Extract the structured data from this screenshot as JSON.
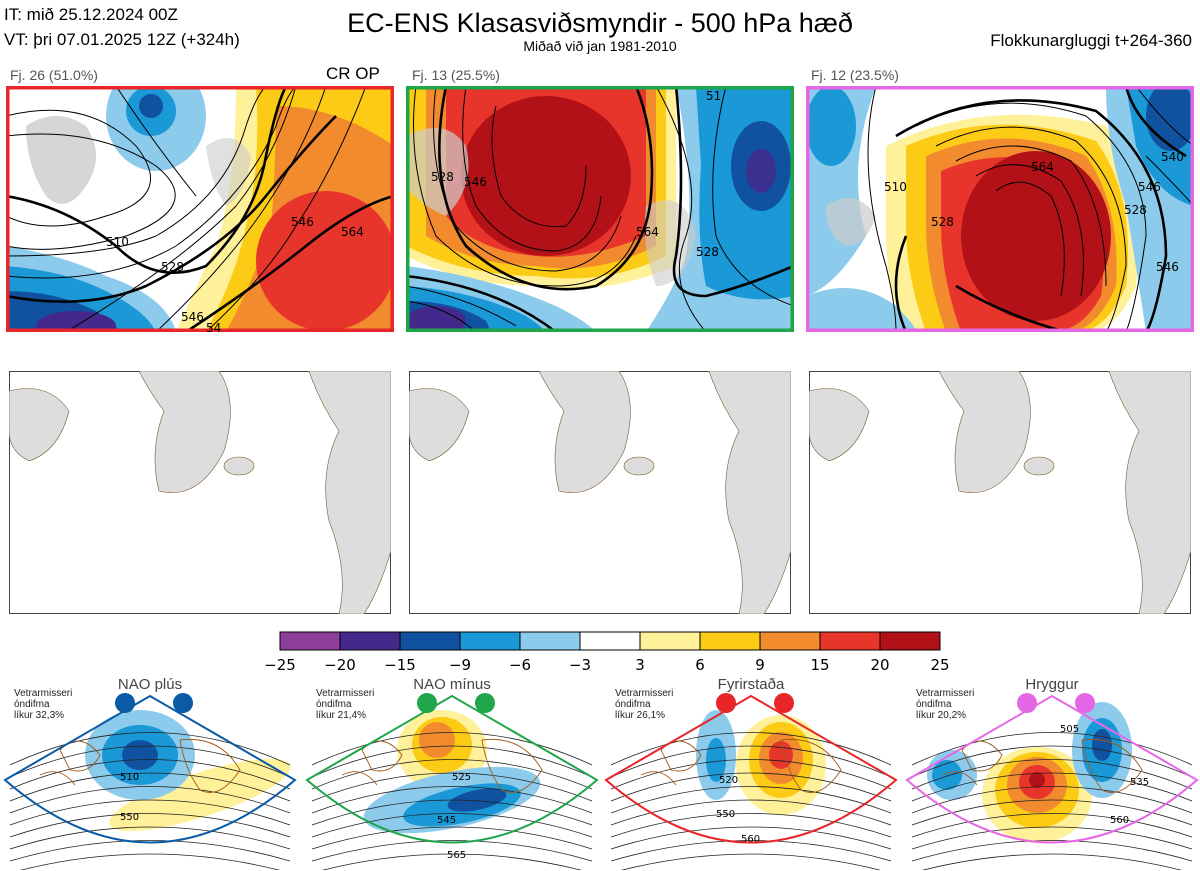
{
  "header": {
    "it_line": "IT: mið 25.12.2024 00Z",
    "vt_line": "VT: þri 07.01.2025 12Z  (+324h)",
    "title": "EC-ENS Klasasviðsmyndir - 500 hPa hæð",
    "subtitle": "Miðað við jan 1981-2010",
    "window": "Flokkunargluggi t+264-360"
  },
  "clusters": [
    {
      "label": "Fj. 26 (51.0%)",
      "border_color": "#e8262a",
      "tag": "CR OP",
      "contours": [
        "510",
        "528",
        "546",
        "564",
        "546",
        "54"
      ]
    },
    {
      "label": "Fj. 13 (25.5%)",
      "border_color": "#1fa54a",
      "tag": "",
      "contours": [
        "528",
        "546",
        "564",
        "528",
        "51"
      ]
    },
    {
      "label": "Fj. 12 (23.5%)",
      "border_color": "#e667e6",
      "tag": "",
      "contours": [
        "528",
        "564",
        "546",
        "528",
        "510",
        "546",
        "540"
      ]
    }
  ],
  "colorbar": {
    "ticks": [
      "−25",
      "−20",
      "−15",
      "−9",
      "−6",
      "−3",
      "3",
      "6",
      "9",
      "15",
      "20",
      "25"
    ],
    "colors": [
      "#8e3f9b",
      "#44288c",
      "#1052a0",
      "#1b98d6",
      "#8ccbec",
      "#ffffff",
      "#fff199",
      "#fccb16",
      "#f28a2e",
      "#e8352c",
      "#b31118"
    ]
  },
  "regimes": [
    {
      "name": "NAO plús",
      "stat_lines": [
        "Vetrarmisseri",
        "óndifma",
        "líkur 32,3%"
      ],
      "color": "#0b5aa5",
      "contours": [
        "510",
        "550"
      ]
    },
    {
      "name": "NAO mínus",
      "stat_lines": [
        "Vetrarmisseri",
        "óndifma",
        "líkur 21,4%"
      ],
      "color": "#1fa54a",
      "contours": [
        "525",
        "545",
        "565"
      ]
    },
    {
      "name": "Fyrirstaða",
      "stat_lines": [
        "Vetrarmisseri",
        "óndifma",
        "líkur 26,1%"
      ],
      "color": "#e8262a",
      "contours": [
        "520",
        "550",
        "560"
      ]
    },
    {
      "name": "Hryggur",
      "stat_lines": [
        "Vetrarmisseri",
        "óndifma",
        "líkur 20,2%"
      ],
      "color": "#e667e6",
      "contours": [
        "505",
        "535",
        "560"
      ]
    }
  ]
}
